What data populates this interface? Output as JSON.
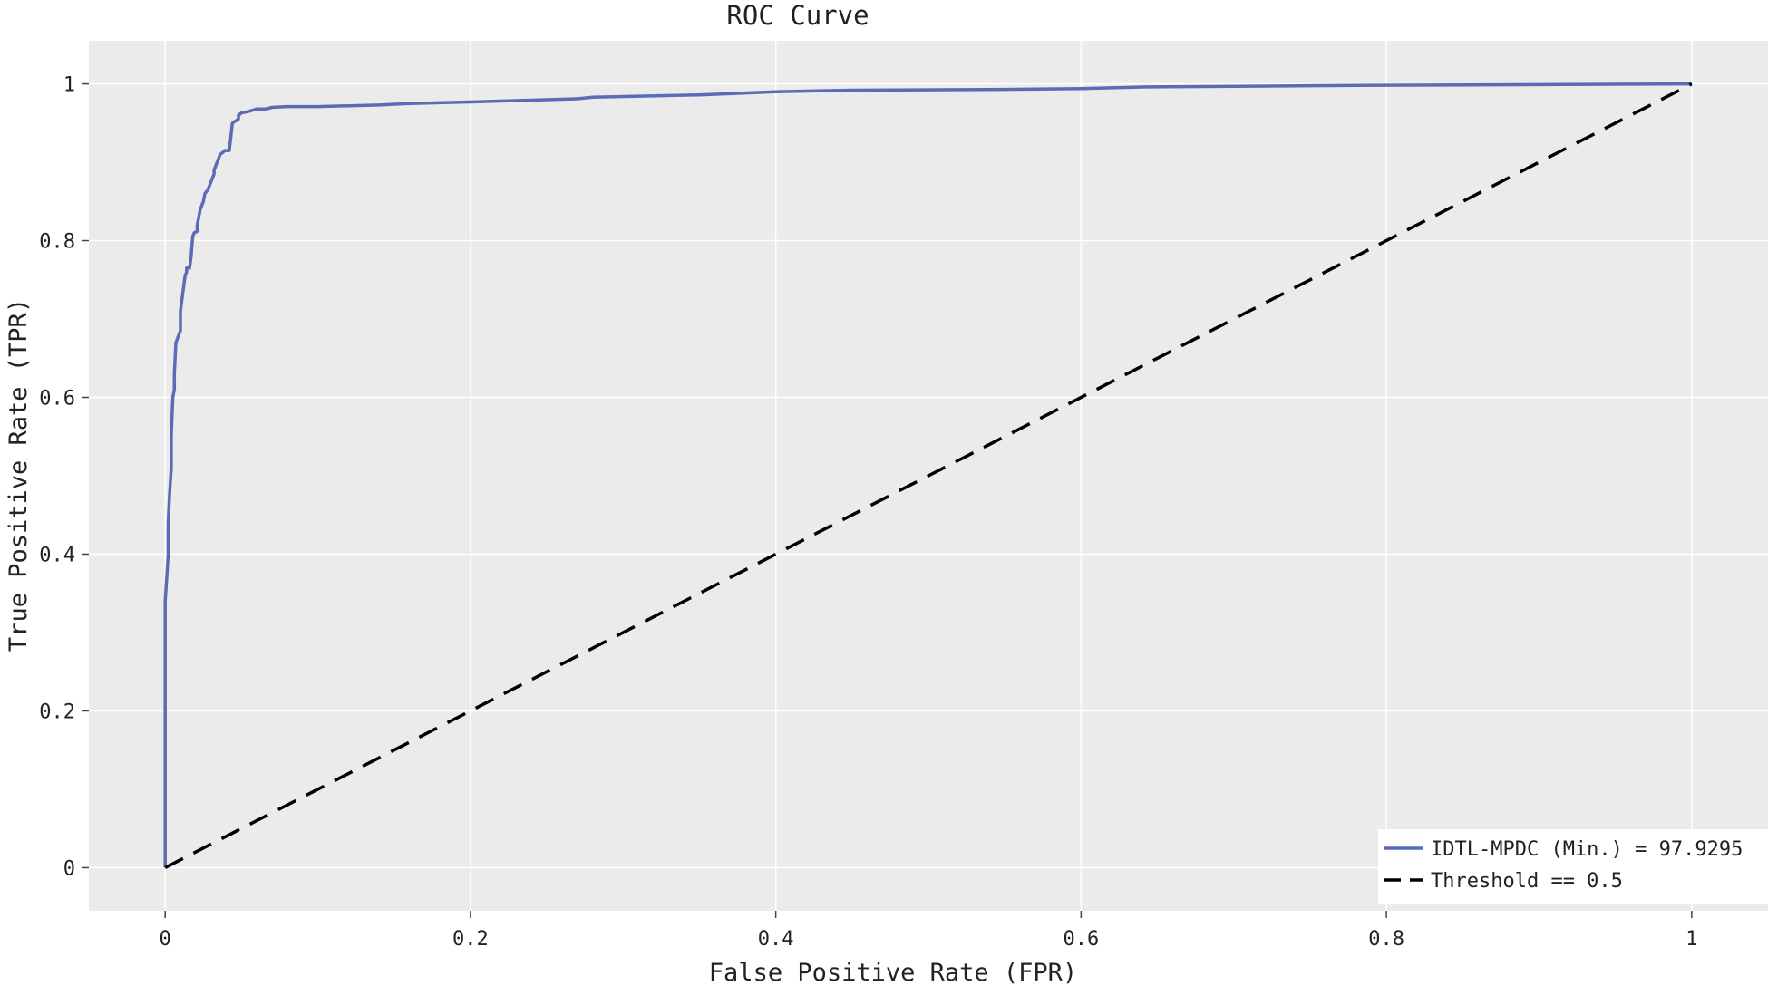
{
  "chart_data": {
    "type": "line",
    "title": "ROC Curve",
    "xlabel": "False Positive Rate (FPR)",
    "ylabel": "True Positive Rate (TPR)",
    "xlim": [
      -0.05,
      1.05
    ],
    "ylim": [
      -0.055,
      1.055
    ],
    "grid": true,
    "legend_position": "bottom-right",
    "x_ticks": [
      0,
      0.2,
      0.4,
      0.6,
      0.8,
      1
    ],
    "x_tick_labels": [
      "0",
      "0.2",
      "0.4",
      "0.6",
      "0.8",
      "1"
    ],
    "y_ticks": [
      0,
      0.2,
      0.4,
      0.6,
      0.8,
      1
    ],
    "y_tick_labels": [
      "0",
      "0.2",
      "0.4",
      "0.6",
      "0.8",
      "1"
    ],
    "series": [
      {
        "name": "IDTL-MPDC (Min.) = 97.9295",
        "color": "#5c6bb5",
        "style": "solid",
        "x": [
          0,
          0,
          0.001,
          0.002,
          0.002,
          0.003,
          0.004,
          0.004,
          0.005,
          0.006,
          0.006,
          0.007,
          0.008,
          0.009,
          0.01,
          0.01,
          0.012,
          0.013,
          0.014,
          0.014,
          0.016,
          0.017,
          0.018,
          0.019,
          0.021,
          0.021,
          0.022,
          0.023,
          0.025,
          0.026,
          0.028,
          0.029,
          0.03,
          0.031,
          0.032,
          0.032,
          0.034,
          0.036,
          0.038,
          0.039,
          0.04,
          0.042,
          0.044,
          0.048,
          0.048,
          0.05,
          0.055,
          0.06,
          0.066,
          0.07,
          0.08,
          0.1,
          0.14,
          0.16,
          0.2,
          0.27,
          0.28,
          0.35,
          0.4,
          0.45,
          0.55,
          0.6,
          0.64,
          0.78,
          1
        ],
        "y": [
          0,
          0.34,
          0.37,
          0.4,
          0.44,
          0.48,
          0.51,
          0.55,
          0.6,
          0.61,
          0.63,
          0.67,
          0.675,
          0.68,
          0.685,
          0.71,
          0.74,
          0.755,
          0.76,
          0.765,
          0.765,
          0.78,
          0.805,
          0.81,
          0.812,
          0.82,
          0.83,
          0.84,
          0.85,
          0.86,
          0.865,
          0.87,
          0.875,
          0.88,
          0.885,
          0.89,
          0.9,
          0.91,
          0.913,
          0.915,
          0.915,
          0.915,
          0.95,
          0.955,
          0.96,
          0.963,
          0.965,
          0.968,
          0.968,
          0.97,
          0.971,
          0.971,
          0.973,
          0.975,
          0.977,
          0.981,
          0.983,
          0.986,
          0.99,
          0.992,
          0.993,
          0.994,
          0.996,
          0.998,
          1.0
        ]
      },
      {
        "name": "Threshold == 0.5",
        "color": "#000000",
        "style": "dashed",
        "x": [
          0,
          1
        ],
        "y": [
          0,
          1
        ]
      }
    ]
  }
}
